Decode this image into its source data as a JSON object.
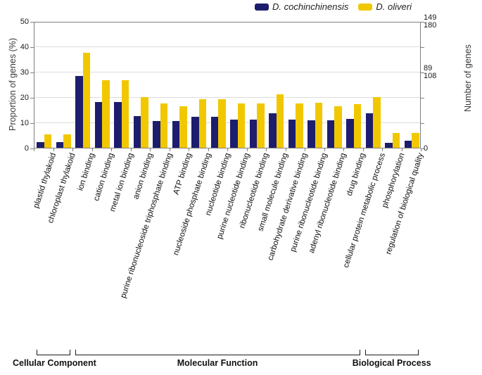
{
  "legend": {
    "items": [
      {
        "label": "D. cochinchinensis",
        "color": "#1d1d6e"
      },
      {
        "label": "D. oliveri",
        "color": "#f1c800"
      }
    ]
  },
  "y_axis_left": {
    "title": "Proportion of genes (%)",
    "ticks": [
      0,
      10,
      20,
      30,
      40,
      50
    ],
    "max": 50
  },
  "y_axis_right": {
    "title": "Number of genes",
    "labels": [
      {
        "at": 50,
        "lines": [
          "149",
          "180"
        ]
      },
      {
        "at": 30,
        "lines": [
          "89",
          "108"
        ]
      },
      {
        "at": 0,
        "lines": [
          "0"
        ]
      }
    ]
  },
  "groups": [
    {
      "label": "Cellular Component",
      "from": 1,
      "to": 2
    },
    {
      "label": "Molecular Function",
      "from": 3,
      "to": 17
    },
    {
      "label": "Biological Process",
      "from": 18,
      "to": 20
    }
  ],
  "chart_data": {
    "type": "bar",
    "title": "",
    "categories": [
      "plastid thylakoid",
      "chloroplast thylakoid",
      "ion binding",
      "cation binding",
      "metal ion binding",
      "anion binding",
      "purine ribonucleoside triphosphate binding",
      "ATP binding",
      "nucleoside phosphate binding",
      "nucleotide binding",
      "purine nucleotide binding",
      "ribonucleotide binding",
      "small molecule binding",
      "carbohydrate derivative binding",
      "purine ribonucleotide binding",
      "adenyl ribonucleotide binding",
      "drug binding",
      "cellular protein metabolic process",
      "phosphorylation",
      "regulation of biological quality"
    ],
    "series": [
      {
        "name": "D. cochinchinensis",
        "color": "#1d1d6e",
        "values": [
          2.3,
          2.3,
          28.2,
          18.1,
          18.1,
          12.6,
          10.6,
          10.6,
          12.3,
          12.3,
          11.0,
          11.0,
          13.5,
          11.0,
          10.7,
          10.7,
          11.3,
          13.7,
          1.9,
          2.8
        ]
      },
      {
        "name": "D. oliveri",
        "color": "#f1c800",
        "values": [
          5.4,
          5.4,
          37.6,
          26.6,
          26.6,
          20.0,
          17.5,
          16.3,
          19.2,
          19.2,
          17.5,
          17.5,
          21.1,
          17.5,
          17.7,
          16.3,
          17.2,
          20.0,
          5.7,
          5.7
        ]
      }
    ],
    "xlabel": "",
    "ylabel": "Proportion of genes (%)",
    "ylabel_right": "Number of genes",
    "ylim": [
      0,
      50
    ],
    "grid": true,
    "legend_position": "top-right"
  }
}
